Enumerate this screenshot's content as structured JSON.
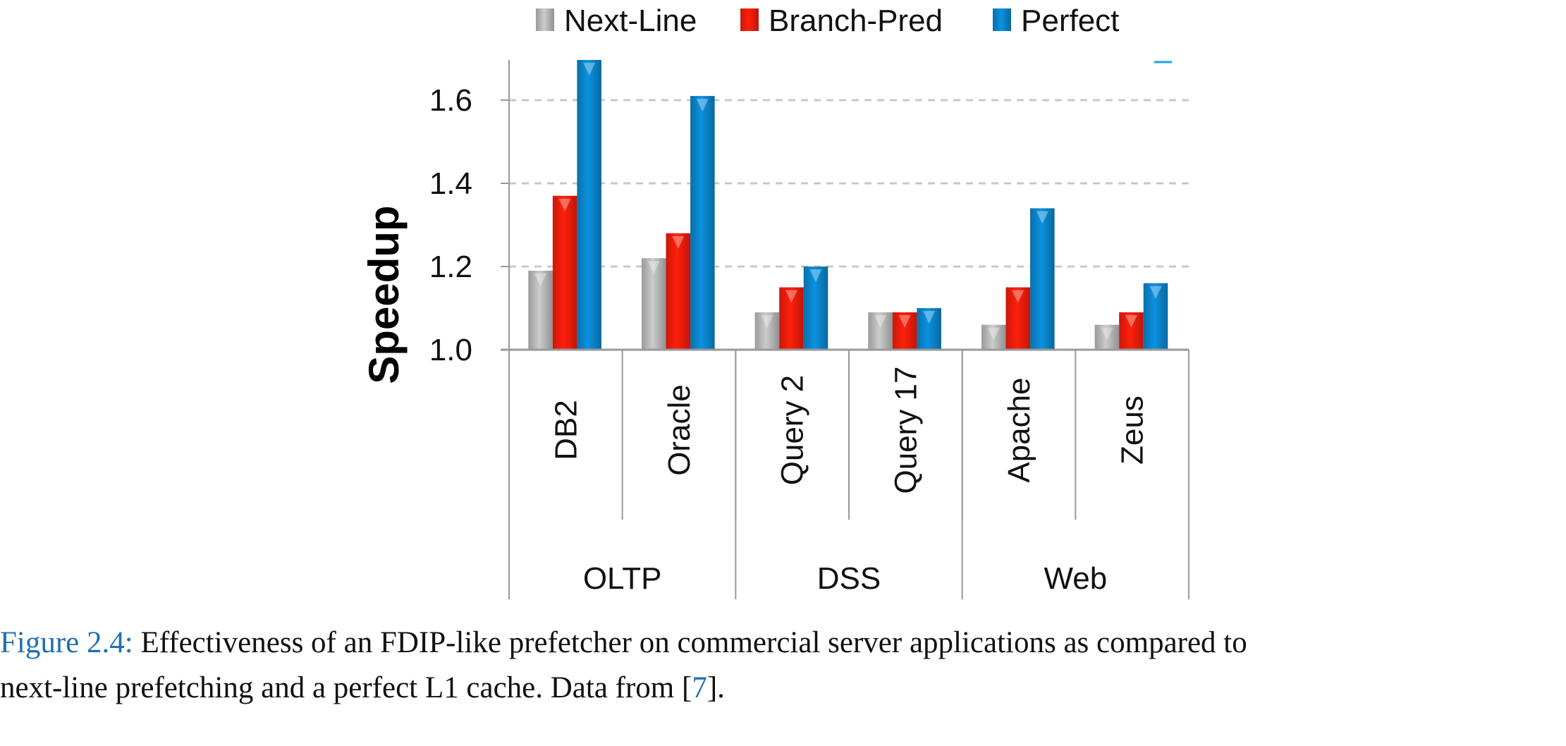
{
  "chart_data": {
    "type": "bar",
    "ylabel": "Speedup",
    "ylim": [
      1.0,
      1.7
    ],
    "yticks": [
      "1.0",
      "1.2",
      "1.4",
      "1.6"
    ],
    "grid": "horizontal dashed",
    "legend_position": "top",
    "categories": [
      "DB2",
      "Oracle",
      "Query 2",
      "Query 17",
      "Apache",
      "Zeus"
    ],
    "groups": [
      {
        "label": "OLTP",
        "span": 2
      },
      {
        "label": "DSS",
        "span": 2
      },
      {
        "label": "Web",
        "span": 2
      }
    ],
    "series": [
      {
        "name": "Next-Line",
        "color": "#b5b5b5",
        "values": [
          1.19,
          1.22,
          1.09,
          1.09,
          1.06,
          1.06
        ]
      },
      {
        "name": "Branch-Pred",
        "color": "#ee1c0a",
        "values": [
          1.37,
          1.28,
          1.15,
          1.09,
          1.15,
          1.09
        ]
      },
      {
        "name": "Perfect",
        "color": "#0a82c8",
        "values": [
          1.7,
          1.61,
          1.2,
          1.1,
          1.34,
          1.16
        ]
      }
    ]
  },
  "caption": {
    "label": "Figure 2.4:",
    "text_line1": " Effectiveness of an FDIP-like prefetcher on commercial server applications as compared to",
    "text_line2": "next-line prefetching and a perfect L1 cache. Data from [",
    "ref": "7",
    "text_end": "]."
  }
}
